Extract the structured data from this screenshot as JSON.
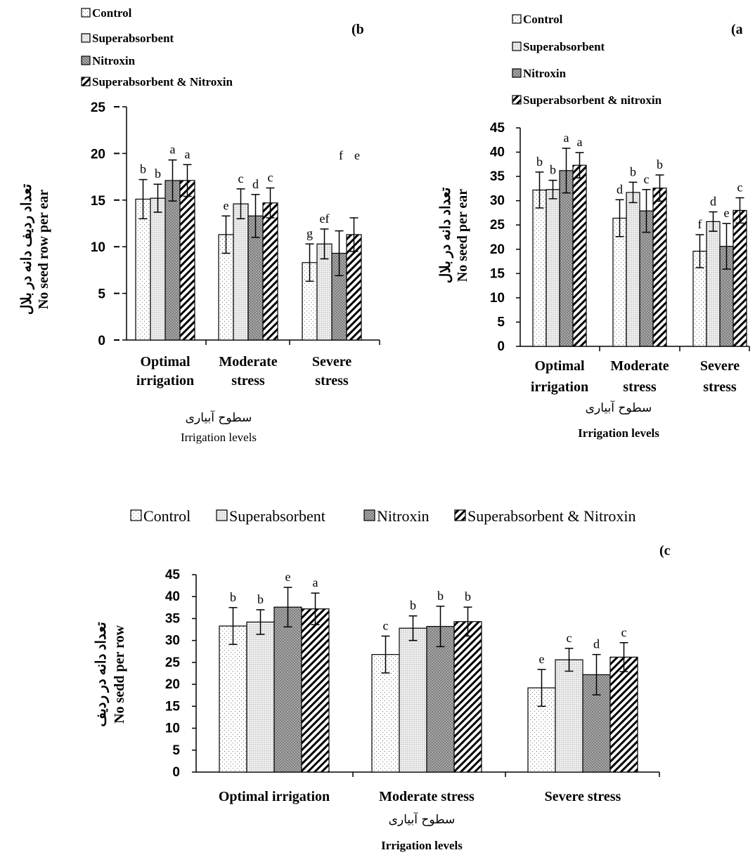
{
  "series_styles": [
    {
      "key": "control",
      "fill": "#ffffff",
      "pattern": "dots-sparse"
    },
    {
      "key": "superabsorbent",
      "fill": "#e9e9e9",
      "pattern": "dots-dense"
    },
    {
      "key": "nitroxin",
      "fill": "#8c8c8c",
      "pattern": "checker"
    },
    {
      "key": "both",
      "fill": "#ffffff",
      "pattern": "diagonal-hatch"
    }
  ],
  "chart_data": [
    {
      "id": "b",
      "type": "bar",
      "panel_label": "(b",
      "legend": [
        "Control",
        "Superabsorbent",
        "Nitroxin",
        "Superabsorbent & Nitroxin"
      ],
      "legend_layout": "vertical",
      "ylabel_fa": "تعداد ردیف دانه در بلال",
      "ylabel_en": "No seed row per ear",
      "xlabel_fa": "سطوح آبیاری",
      "xlabel_en": "Irrigation levels",
      "categories": [
        [
          "Optimal",
          "irrigation"
        ],
        [
          "Moderate",
          "stress"
        ],
        [
          "Severe",
          "stress"
        ]
      ],
      "ylim": [
        0,
        25
      ],
      "yticks": [
        0,
        5,
        10,
        15,
        20,
        25
      ],
      "series": [
        {
          "name": "Control",
          "values": [
            15.1,
            11.3,
            8.3
          ],
          "errors": [
            2.1,
            2.0,
            2.0
          ],
          "letters": [
            "b",
            "e",
            "g"
          ]
        },
        {
          "name": "Superabsorbent",
          "values": [
            15.2,
            14.6,
            10.3
          ],
          "errors": [
            1.5,
            1.6,
            1.6
          ],
          "letters": [
            "b",
            "c",
            "ef"
          ]
        },
        {
          "name": "Nitroxin",
          "values": [
            17.1,
            13.3,
            9.3
          ],
          "errors": [
            2.2,
            2.3,
            2.4
          ],
          "letters": [
            "a",
            "d",
            ""
          ]
        },
        {
          "name": "Superabsorbent & Nitroxin",
          "values": [
            17.1,
            14.7,
            11.3
          ],
          "errors": [
            1.7,
            1.6,
            1.8
          ],
          "letters": [
            "a",
            "c",
            ""
          ]
        }
      ],
      "extra_letters": [
        "f",
        "e"
      ]
    },
    {
      "id": "a",
      "type": "bar",
      "panel_label": "(a",
      "legend": [
        "Control",
        "Superabsorbent",
        "Nitroxin",
        "Superabsorbent & nitroxin"
      ],
      "legend_layout": "vertical",
      "ylabel_fa": "تعداد دانه در بلال",
      "ylabel_en": "No seed per ear",
      "xlabel_fa": "سطوح آبیاری",
      "xlabel_en": "Irrigation levels",
      "categories": [
        [
          "Optimal",
          "irrigation"
        ],
        [
          "Moderate",
          "stress"
        ],
        [
          "Severe",
          "stress"
        ]
      ],
      "ylim": [
        0,
        45
      ],
      "yticks": [
        0,
        5,
        10,
        15,
        20,
        25,
        30,
        35,
        40,
        45
      ],
      "series": [
        {
          "name": "Control",
          "values": [
            32.2,
            26.4,
            19.6
          ],
          "errors": [
            3.7,
            3.8,
            3.4
          ],
          "letters": [
            "b",
            "d",
            "f"
          ]
        },
        {
          "name": "Superabsorbent",
          "values": [
            32.3,
            31.7,
            25.7
          ],
          "errors": [
            1.9,
            2.1,
            2.0
          ],
          "letters": [
            "b",
            "b",
            "d"
          ]
        },
        {
          "name": "Nitroxin",
          "values": [
            36.2,
            27.9,
            20.6
          ],
          "errors": [
            4.6,
            4.4,
            4.7
          ],
          "letters": [
            "a",
            "c",
            "e"
          ]
        },
        {
          "name": "Superabsorbent & nitroxin",
          "values": [
            37.3,
            32.6,
            28.0
          ],
          "errors": [
            2.6,
            2.7,
            2.6
          ],
          "letters": [
            "a",
            "b",
            "c"
          ]
        }
      ]
    },
    {
      "id": "c",
      "type": "bar",
      "panel_label": "(c",
      "legend": [
        "Control",
        "Superabsorbent",
        "Nitroxin",
        "Superabsorbent & Nitroxin"
      ],
      "legend_layout": "horizontal",
      "ylabel_fa": "تعداد دانه در ردیف",
      "ylabel_en": "No sedd per row",
      "xlabel_fa": "سطوح آبیاری",
      "xlabel_en": "Irrigation levels",
      "categories": [
        [
          "Optimal irrigation"
        ],
        [
          "Moderate stress"
        ],
        [
          "Severe stress"
        ]
      ],
      "ylim": [
        0,
        45
      ],
      "yticks": [
        0,
        5,
        10,
        15,
        20,
        25,
        30,
        35,
        40,
        45
      ],
      "series": [
        {
          "name": "Control",
          "values": [
            33.3,
            26.8,
            19.2
          ],
          "errors": [
            4.2,
            4.2,
            4.2
          ],
          "letters": [
            "b",
            "c",
            "e"
          ]
        },
        {
          "name": "Superabsorbent",
          "values": [
            34.2,
            32.8,
            25.6
          ],
          "errors": [
            2.8,
            2.8,
            2.6
          ],
          "letters": [
            "b",
            "b",
            "c"
          ]
        },
        {
          "name": "Nitroxin",
          "values": [
            37.6,
            33.2,
            22.2
          ],
          "errors": [
            4.5,
            4.6,
            4.6
          ],
          "letters": [
            "e",
            "b",
            "d"
          ]
        },
        {
          "name": "Superabsorbent & Nitroxin",
          "values": [
            37.2,
            34.3,
            26.2
          ],
          "errors": [
            3.6,
            3.3,
            3.3
          ],
          "letters": [
            "a",
            "b",
            "c"
          ]
        }
      ]
    }
  ]
}
